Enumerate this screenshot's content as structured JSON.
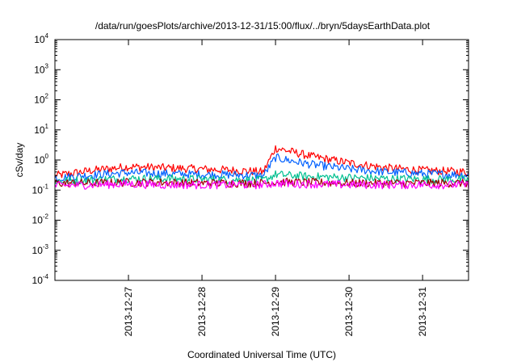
{
  "chart_data": {
    "type": "line",
    "title": "/data/run/goesPlots/archive/2013-12-31/15:00/flux/../bryn/5daysEarthData.plot",
    "xlabel": "Coordinated Universal Time (UTC)",
    "ylabel": "cSv/day",
    "yscale": "log",
    "ylim": [
      0.0001,
      10000
    ],
    "xlim": [
      "2013-12-26 00:00",
      "2013-12-31 15:00"
    ],
    "y_ticks": [
      {
        "base": "10",
        "exp": "-4"
      },
      {
        "base": "10",
        "exp": "-3"
      },
      {
        "base": "10",
        "exp": "-2"
      },
      {
        "base": "10",
        "exp": "-1"
      },
      {
        "base": "10",
        "exp": "0"
      },
      {
        "base": "10",
        "exp": "1"
      },
      {
        "base": "10",
        "exp": "2"
      },
      {
        "base": "10",
        "exp": "3"
      },
      {
        "base": "10",
        "exp": "4"
      }
    ],
    "x_ticks": [
      "2013-12-27",
      "2013-12-28",
      "2013-12-29",
      "2013-12-30",
      "2013-12-31"
    ],
    "grid": false,
    "legend": "none",
    "x": [
      "2013-12-26 00:00",
      "2013-12-26 12:00",
      "2013-12-27 00:00",
      "2013-12-27 12:00",
      "2013-12-28 00:00",
      "2013-12-28 12:00",
      "2013-12-28 20:00",
      "2013-12-29 00:00",
      "2013-12-29 06:00",
      "2013-12-29 12:00",
      "2013-12-30 00:00",
      "2013-12-30 12:00",
      "2013-12-31 00:00",
      "2013-12-31 15:00"
    ],
    "series": [
      {
        "color": "#ff0000",
        "values": [
          0.3,
          0.45,
          0.6,
          0.55,
          0.5,
          0.45,
          0.4,
          2.5,
          1.8,
          1.3,
          0.8,
          0.55,
          0.45,
          0.4
        ]
      },
      {
        "color": "#0060ff",
        "values": [
          0.25,
          0.32,
          0.38,
          0.35,
          0.33,
          0.32,
          0.3,
          1.2,
          0.9,
          0.7,
          0.5,
          0.4,
          0.35,
          0.32
        ]
      },
      {
        "color": "#00c090",
        "values": [
          0.2,
          0.22,
          0.24,
          0.24,
          0.23,
          0.22,
          0.21,
          0.33,
          0.3,
          0.28,
          0.26,
          0.24,
          0.23,
          0.22
        ]
      },
      {
        "color": "#a00000",
        "values": [
          0.17,
          0.17,
          0.18,
          0.18,
          0.17,
          0.17,
          0.17,
          0.19,
          0.18,
          0.18,
          0.17,
          0.17,
          0.17,
          0.17
        ]
      },
      {
        "color": "#ff00ff",
        "values": [
          0.14,
          0.15,
          0.16,
          0.15,
          0.15,
          0.15,
          0.15,
          0.17,
          0.16,
          0.16,
          0.15,
          0.15,
          0.15,
          0.15
        ]
      }
    ]
  }
}
